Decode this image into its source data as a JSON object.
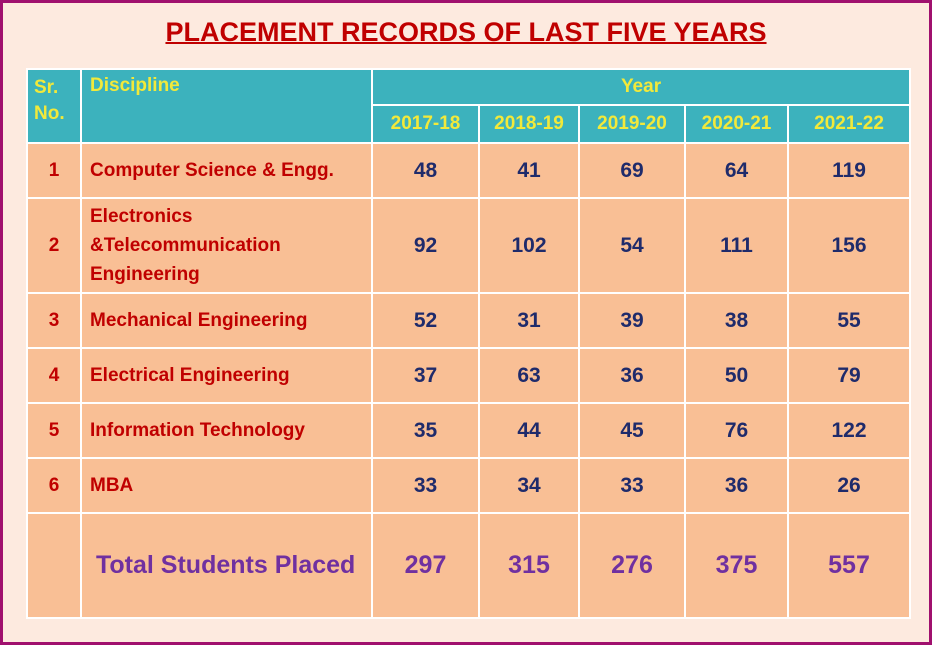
{
  "title": "PLACEMENT RECORDS OF LAST FIVE YEARS",
  "table": {
    "header": {
      "sr_no": "Sr. No.",
      "discipline": "Discipline",
      "year": "Year",
      "years": [
        "2017-18",
        "2018-19",
        "2019-20",
        "2020-21",
        "2021-22"
      ]
    },
    "rows": [
      {
        "sr": 1,
        "discipline": "Computer Science & Engg.",
        "values": [
          48,
          41,
          69,
          64,
          119
        ]
      },
      {
        "sr": 2,
        "discipline": "Electronics &Telecommunication Engineering",
        "values": [
          92,
          102,
          54,
          111,
          156
        ]
      },
      {
        "sr": 3,
        "discipline": "Mechanical Engineering",
        "values": [
          52,
          31,
          39,
          38,
          55
        ]
      },
      {
        "sr": 4,
        "discipline": "Electrical Engineering",
        "values": [
          37,
          63,
          36,
          50,
          79
        ]
      },
      {
        "sr": 5,
        "discipline": "Information Technology",
        "values": [
          35,
          44,
          45,
          76,
          122
        ]
      },
      {
        "sr": 6,
        "discipline": "MBA",
        "values": [
          33,
          34,
          33,
          36,
          26
        ]
      }
    ],
    "total": {
      "label": "Total Students Placed",
      "values": [
        297,
        315,
        276,
        375,
        557
      ]
    }
  }
}
